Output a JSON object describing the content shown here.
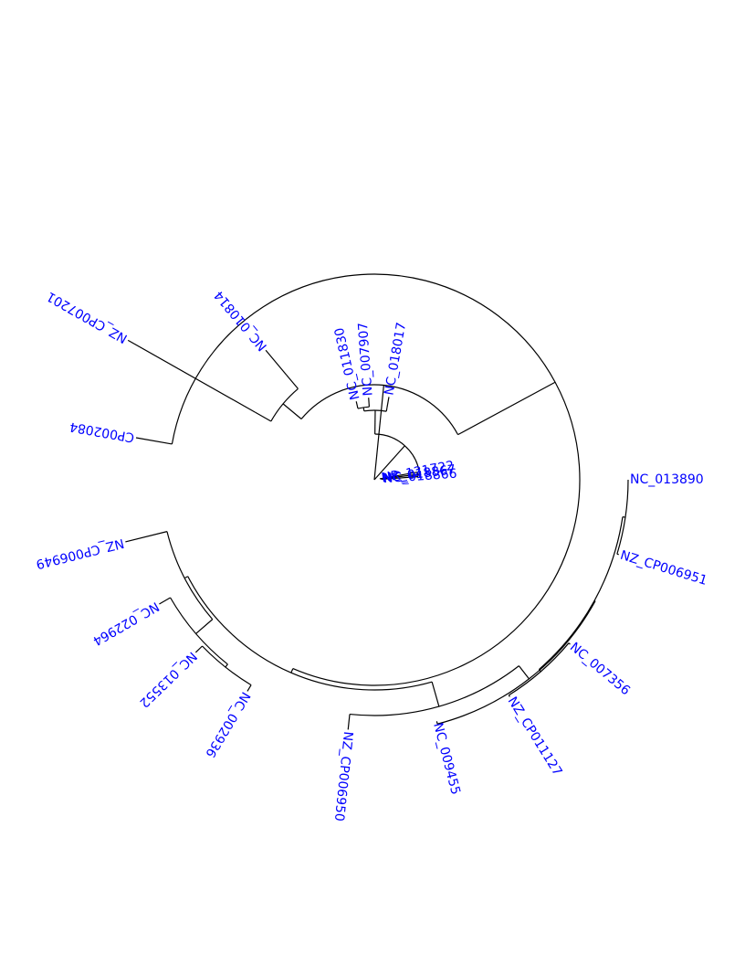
{
  "colors": {
    "branch": "#000000",
    "label": "#0000ff",
    "background": "#ffffff"
  },
  "tree": {
    "layout": "circular",
    "leaves": [
      "NC_013890",
      "NZ_CP006951",
      "NC_007356",
      "NZ_CP011127",
      "NC_009455",
      "NZ_CP006950",
      "NC_002936",
      "NC_013552",
      "NC_022964",
      "NZ_CP006949",
      "CP002084",
      "NZ_CP007201",
      "NC_010814",
      "NC_011830",
      "NC_007907",
      "NC_018017",
      "NR_121722",
      "NC_018867",
      "NC_018866"
    ]
  }
}
